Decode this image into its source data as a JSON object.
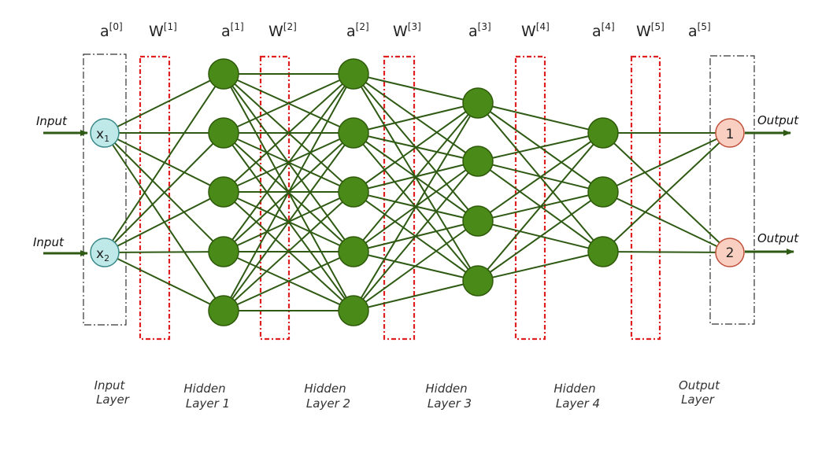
{
  "activation_labels": [
    {
      "base": "a",
      "sup": "[0]"
    },
    {
      "base": "a",
      "sup": "[1]"
    },
    {
      "base": "a",
      "sup": "[2]"
    },
    {
      "base": "a",
      "sup": "[3]"
    },
    {
      "base": "a",
      "sup": "[4]"
    },
    {
      "base": "a",
      "sup": "[5]"
    }
  ],
  "weight_labels": [
    {
      "base": "W",
      "sup": "[1]"
    },
    {
      "base": "W",
      "sup": "[2]"
    },
    {
      "base": "W",
      "sup": "[3]"
    },
    {
      "base": "W",
      "sup": "[4]"
    },
    {
      "base": "W",
      "sup": "[5]"
    }
  ],
  "inputs": [
    {
      "label": "Input",
      "node": "x",
      "sub": "1"
    },
    {
      "label": "Input",
      "node": "x",
      "sub": "2"
    }
  ],
  "outputs": [
    {
      "label": "Output",
      "node": "1"
    },
    {
      "label": "Output",
      "node": "2"
    }
  ],
  "layers": [
    {
      "line1": "Input",
      "line2": "Layer",
      "neurons": 2
    },
    {
      "line1": "Hidden",
      "line2": "Layer 1",
      "neurons": 5
    },
    {
      "line1": "Hidden",
      "line2": "Layer 2",
      "neurons": 5
    },
    {
      "line1": "Hidden",
      "line2": "Layer 3",
      "neurons": 4
    },
    {
      "line1": "Hidden",
      "line2": "Layer 4",
      "neurons": 3
    },
    {
      "line1": "Output",
      "line2": "Layer",
      "neurons": 2
    }
  ],
  "colors": {
    "hidden_node": "#4a8a18",
    "hidden_node_stroke": "#2e5a0a",
    "input_node": "#bfe8e8",
    "input_node_stroke": "#3a8a8a",
    "output_node": "#f8cfc0",
    "output_node_stroke": "#c0503a",
    "edge": "#2f5a14",
    "weight_box": "#e02020",
    "layer_box": "#333333"
  }
}
